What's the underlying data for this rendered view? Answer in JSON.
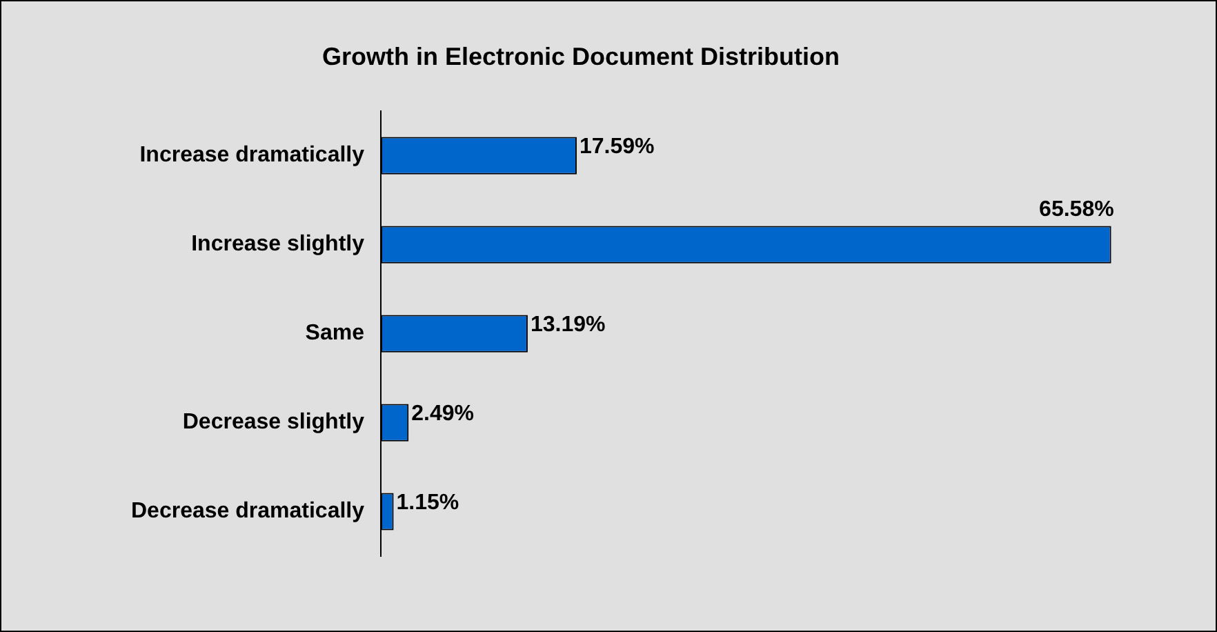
{
  "chart_data": {
    "type": "bar",
    "orientation": "horizontal",
    "title": "Growth in Electronic Document Distribution",
    "categories": [
      "Increase dramatically",
      "Increase slightly",
      "Same",
      "Decrease slightly",
      "Decrease dramatically"
    ],
    "values": [
      17.59,
      65.58,
      13.19,
      2.49,
      1.15
    ],
    "value_labels": [
      "17.59%",
      "65.58%",
      "13.19%",
      "2.49%",
      "1.15%"
    ],
    "color": "#0066cc",
    "grid": false,
    "legend": false
  }
}
